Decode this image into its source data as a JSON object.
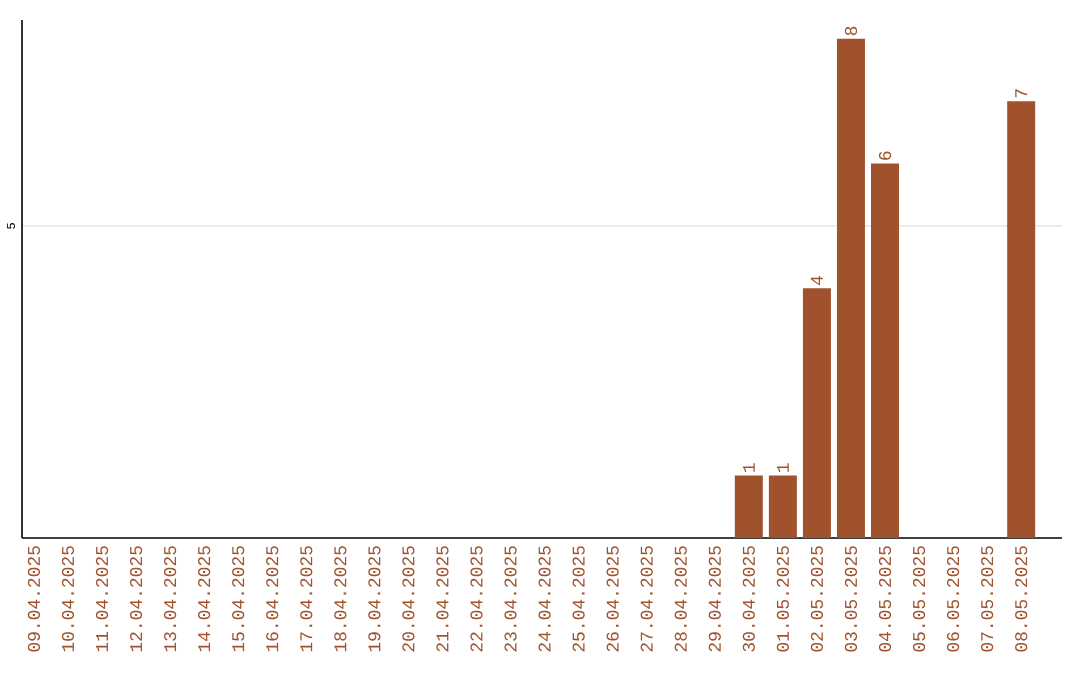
{
  "chart_data": {
    "type": "bar",
    "categories": [
      "09.04.2025",
      "10.04.2025",
      "11.04.2025",
      "12.04.2025",
      "13.04.2025",
      "14.04.2025",
      "15.04.2025",
      "16.04.2025",
      "17.04.2025",
      "18.04.2025",
      "19.04.2025",
      "20.04.2025",
      "21.04.2025",
      "22.04.2025",
      "23.04.2025",
      "24.04.2025",
      "25.04.2025",
      "26.04.2025",
      "27.04.2025",
      "28.04.2025",
      "29.04.2025",
      "30.04.2025",
      "01.05.2025",
      "02.05.2025",
      "03.05.2025",
      "04.05.2025",
      "05.05.2025",
      "06.05.2025",
      "07.05.2025",
      "08.05.2025"
    ],
    "values": [
      null,
      null,
      null,
      null,
      null,
      null,
      null,
      null,
      null,
      null,
      null,
      null,
      null,
      null,
      null,
      null,
      null,
      null,
      null,
      null,
      null,
      1,
      1,
      4,
      8,
      6,
      null,
      null,
      null,
      7
    ],
    "data_labels": true,
    "color": "#a0522d",
    "ylim": [
      0,
      8.3
    ],
    "yticks": [
      5
    ],
    "grid": "y"
  }
}
